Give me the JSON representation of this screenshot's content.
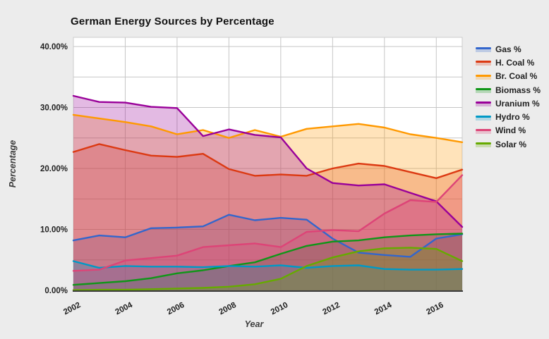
{
  "page": {
    "background_color": "#ececec",
    "plot_background_color": "#ffffff",
    "grid_color": "#c6c6c6",
    "axis_line_color": "#3a3a3a",
    "text_color": "#212121"
  },
  "chart_data": {
    "type": "area",
    "title": "German Energy Sources by Percentage",
    "xlabel": "Year",
    "ylabel": "Percentage",
    "x": [
      2002,
      2003,
      2004,
      2005,
      2006,
      2007,
      2008,
      2009,
      2010,
      2011,
      2012,
      2013,
      2014,
      2015,
      2016,
      2017
    ],
    "x_tick_labels": [
      "2002",
      "2004",
      "2006",
      "2008",
      "2010",
      "2012",
      "2014",
      "2016"
    ],
    "y_tick_labels": [
      "0.00%",
      "10.00%",
      "20.00%",
      "30.00%",
      "40.00%"
    ],
    "y_tick_values": [
      0,
      10,
      20,
      30,
      40
    ],
    "y_minor_step": 5,
    "ylim": [
      0,
      40
    ],
    "grid": true,
    "legend_position": "right",
    "fill_opacity": 0.27,
    "series": [
      {
        "name": "Gas %",
        "color": "#3366CC",
        "values": [
          8.2,
          9.0,
          8.7,
          10.2,
          10.3,
          10.5,
          12.4,
          11.5,
          11.9,
          11.6,
          8.5,
          6.2,
          5.8,
          5.5,
          8.5,
          9.2
        ]
      },
      {
        "name": "H. Coal %",
        "color": "#DC3912",
        "values": [
          22.7,
          24.0,
          23.0,
          22.1,
          21.9,
          22.4,
          19.9,
          18.8,
          19.0,
          18.8,
          20.0,
          20.8,
          20.4,
          19.4,
          18.4,
          19.8
        ]
      },
      {
        "name": "Br. Coal %",
        "color": "#FF9900",
        "values": [
          28.8,
          28.2,
          27.6,
          26.9,
          25.6,
          26.3,
          25.0,
          26.3,
          25.2,
          26.5,
          26.9,
          27.3,
          26.7,
          25.6,
          25.0,
          24.3
        ]
      },
      {
        "name": "Biomass %",
        "color": "#109618",
        "values": [
          0.9,
          1.2,
          1.5,
          2.0,
          2.8,
          3.3,
          4.0,
          4.6,
          6.0,
          7.3,
          8.0,
          8.2,
          8.7,
          9.0,
          9.2,
          9.3
        ]
      },
      {
        "name": "Uranium %",
        "color": "#990099",
        "values": [
          31.9,
          30.9,
          30.8,
          30.1,
          29.9,
          25.3,
          26.4,
          25.5,
          25.1,
          20.0,
          17.6,
          17.2,
          17.4,
          16.0,
          14.6,
          10.4
        ]
      },
      {
        "name": "Hydro %",
        "color": "#0099C6",
        "values": [
          4.8,
          3.7,
          4.0,
          3.9,
          3.9,
          3.8,
          4.0,
          3.9,
          4.1,
          3.7,
          4.0,
          4.1,
          3.5,
          3.4,
          3.4,
          3.5
        ]
      },
      {
        "name": "Wind %",
        "color": "#DD4477",
        "values": [
          3.2,
          3.4,
          4.9,
          5.3,
          5.7,
          7.1,
          7.4,
          7.7,
          7.1,
          9.6,
          9.9,
          9.7,
          12.6,
          14.8,
          14.5,
          18.9
        ]
      },
      {
        "name": "Solar %",
        "color": "#66AA00",
        "values": [
          0.05,
          0.1,
          0.1,
          0.2,
          0.3,
          0.4,
          0.6,
          1.0,
          1.9,
          4.0,
          5.4,
          6.4,
          6.9,
          7.0,
          6.8,
          4.8
        ]
      }
    ]
  }
}
